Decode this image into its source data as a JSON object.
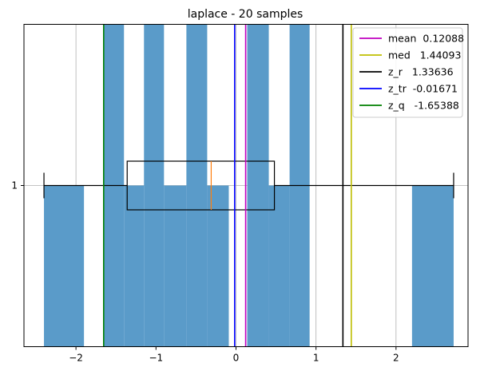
{
  "chart_data": {
    "type": "histogram-with-boxplot",
    "title": "laplace - 20 samples",
    "xlabel": "",
    "ylabel": "",
    "xlim": [
      -2.65,
      2.9
    ],
    "x_ticks": [
      -2,
      -1,
      0,
      1,
      2
    ],
    "x_tick_labels": [
      "−2",
      "−1",
      "0",
      "1",
      "2"
    ],
    "y_ticks": [
      1
    ],
    "y_tick_labels": [
      "1"
    ],
    "grid": true,
    "bar_color": "#5a9bc9",
    "histogram_bins": [
      {
        "x0": -2.4,
        "x1": -1.9,
        "level": 0.5
      },
      {
        "x0": -1.65,
        "x1": -1.4,
        "level": 1.0
      },
      {
        "x0": -1.4,
        "x1": -1.15,
        "level": 0.5
      },
      {
        "x0": -1.15,
        "x1": -0.9,
        "level": 1.0
      },
      {
        "x0": -0.9,
        "x1": -0.62,
        "level": 0.5
      },
      {
        "x0": -0.62,
        "x1": -0.36,
        "level": 1.0
      },
      {
        "x0": -0.36,
        "x1": -0.09,
        "level": 0.5
      },
      {
        "x0": 0.14,
        "x1": 0.41,
        "level": 1.0
      },
      {
        "x0": 0.41,
        "x1": 0.67,
        "level": 0.5
      },
      {
        "x0": 0.67,
        "x1": 0.92,
        "level": 1.0
      },
      {
        "x0": 2.2,
        "x1": 2.72,
        "level": 0.5
      }
    ],
    "boxplot": {
      "whisker_low": -2.4,
      "q1": -1.36,
      "median": -0.31,
      "q3": 0.48,
      "whisker_high": 2.72,
      "box_color": "#000000",
      "median_color": "#ff7f0e"
    },
    "vlines": [
      {
        "name": "mean",
        "value": 0.12088,
        "color": "#bf00bf"
      },
      {
        "name": "med",
        "value": 1.44093,
        "color": "#bfbf00"
      },
      {
        "name": "z_r",
        "value": 1.33636,
        "color": "#000000"
      },
      {
        "name": "z_tr",
        "value": -0.01671,
        "color": "#0000ff"
      },
      {
        "name": "z_q",
        "value": -1.65388,
        "color": "#008000"
      }
    ],
    "legend": {
      "placement": "top-right",
      "entries": [
        {
          "label": "mean  0.12088",
          "color": "#bf00bf"
        },
        {
          "label": "med   1.44093",
          "color": "#bfbf00"
        },
        {
          "label": "z_r   1.33636",
          "color": "#000000"
        },
        {
          "label": "z_tr  -0.01671",
          "color": "#0000ff"
        },
        {
          "label": "z_q   -1.65388",
          "color": "#008000"
        }
      ]
    }
  }
}
